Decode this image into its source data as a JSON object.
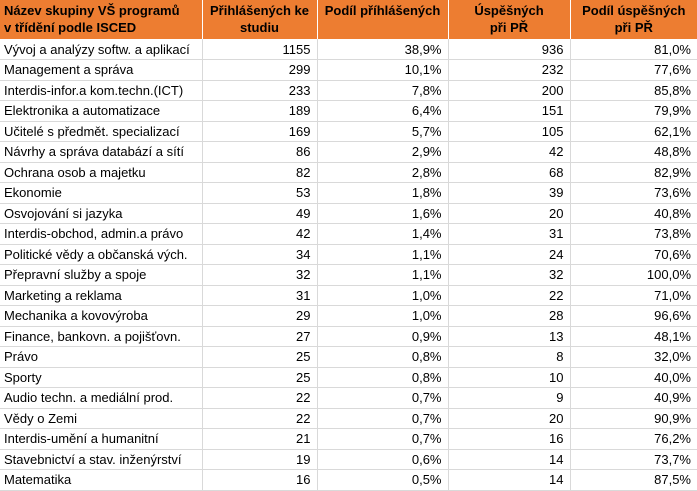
{
  "colors": {
    "header_bg": "#ED7D31",
    "header_text": "#000000",
    "gridline": "#D9D9D9",
    "body_bg": "#FFFFFF",
    "body_text": "#000000"
  },
  "table": {
    "headers": [
      {
        "id": "program-group",
        "lines": [
          "Název skupiny VŠ programů",
          "v třídění podle ISCED"
        ]
      },
      {
        "id": "applicants",
        "lines": [
          "Přihlášených ke",
          "studiu"
        ]
      },
      {
        "id": "applicants-share",
        "lines": [
          "Podíl příhlášených"
        ]
      },
      {
        "id": "successful",
        "lines": [
          "Úspěšných",
          "při PŘ"
        ]
      },
      {
        "id": "successful-share",
        "lines": [
          "Podíl úspěšných",
          "při PŘ"
        ]
      }
    ],
    "rows": [
      [
        "Vývoj a analýzy softw. a aplikací",
        "1155",
        "38,9%",
        "936",
        "81,0%"
      ],
      [
        "Management a správa",
        "299",
        "10,1%",
        "232",
        "77,6%"
      ],
      [
        "Interdis-infor.a kom.techn.(ICT)",
        "233",
        "7,8%",
        "200",
        "85,8%"
      ],
      [
        "Elektronika a automatizace",
        "189",
        "6,4%",
        "151",
        "79,9%"
      ],
      [
        "Učitelé s předmět. specializací",
        "169",
        "5,7%",
        "105",
        "62,1%"
      ],
      [
        "Návrhy a správa databází a sítí",
        "86",
        "2,9%",
        "42",
        "48,8%"
      ],
      [
        "Ochrana osob a majetku",
        "82",
        "2,8%",
        "68",
        "82,9%"
      ],
      [
        "Ekonomie",
        "53",
        "1,8%",
        "39",
        "73,6%"
      ],
      [
        "Osvojování si jazyka",
        "49",
        "1,6%",
        "20",
        "40,8%"
      ],
      [
        "Interdis-obchod, admin.a právo",
        "42",
        "1,4%",
        "31",
        "73,8%"
      ],
      [
        "Politické vědy a občanská vých.",
        "34",
        "1,1%",
        "24",
        "70,6%"
      ],
      [
        "Přepravní služby a spoje",
        "32",
        "1,1%",
        "32",
        "100,0%"
      ],
      [
        "Marketing a reklama",
        "31",
        "1,0%",
        "22",
        "71,0%"
      ],
      [
        "Mechanika a kovovýroba",
        "29",
        "1,0%",
        "28",
        "96,6%"
      ],
      [
        "Finance, bankovn. a pojišťovn.",
        "27",
        "0,9%",
        "13",
        "48,1%"
      ],
      [
        "Právo",
        "25",
        "0,8%",
        "8",
        "32,0%"
      ],
      [
        "Sporty",
        "25",
        "0,8%",
        "10",
        "40,0%"
      ],
      [
        "Audio techn. a mediální prod.",
        "22",
        "0,7%",
        "9",
        "40,9%"
      ],
      [
        "Vědy o Zemi",
        "22",
        "0,7%",
        "20",
        "90,9%"
      ],
      [
        "Interdis-umění a humanitní",
        "21",
        "0,7%",
        "16",
        "76,2%"
      ],
      [
        "Stavebnictví a stav. inženýrství",
        "19",
        "0,6%",
        "14",
        "73,7%"
      ],
      [
        "Matematika",
        "16",
        "0,5%",
        "14",
        "87,5%"
      ]
    ]
  }
}
